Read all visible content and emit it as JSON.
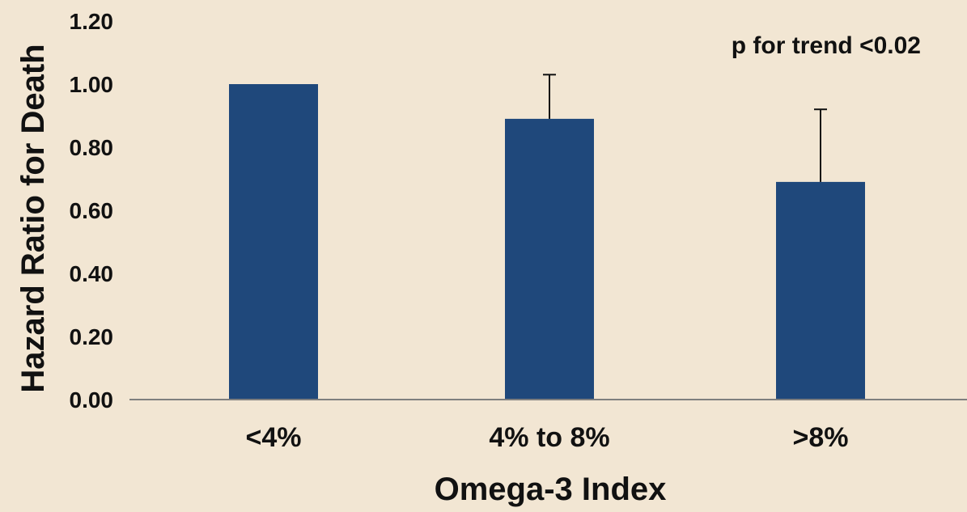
{
  "chart_data": {
    "type": "bar",
    "categories": [
      "<4%",
      "4% to 8%",
      ">8%"
    ],
    "values": [
      1.0,
      0.89,
      0.69
    ],
    "error_upper": [
      null,
      1.03,
      0.92
    ],
    "xlabel": "Omega-3 Index",
    "ylabel": "Hazard Ratio for Death",
    "ylim": [
      0,
      1.2
    ],
    "yticks": [
      "0.00",
      "0.20",
      "0.40",
      "0.60",
      "0.80",
      "1.00",
      "1.20"
    ],
    "annotation": "p for trend <0.02",
    "grid": false,
    "colors": {
      "bar": "#1f487b",
      "axis": "#7f7f7f",
      "text": "#111111",
      "background": "#f2e6d3"
    }
  }
}
